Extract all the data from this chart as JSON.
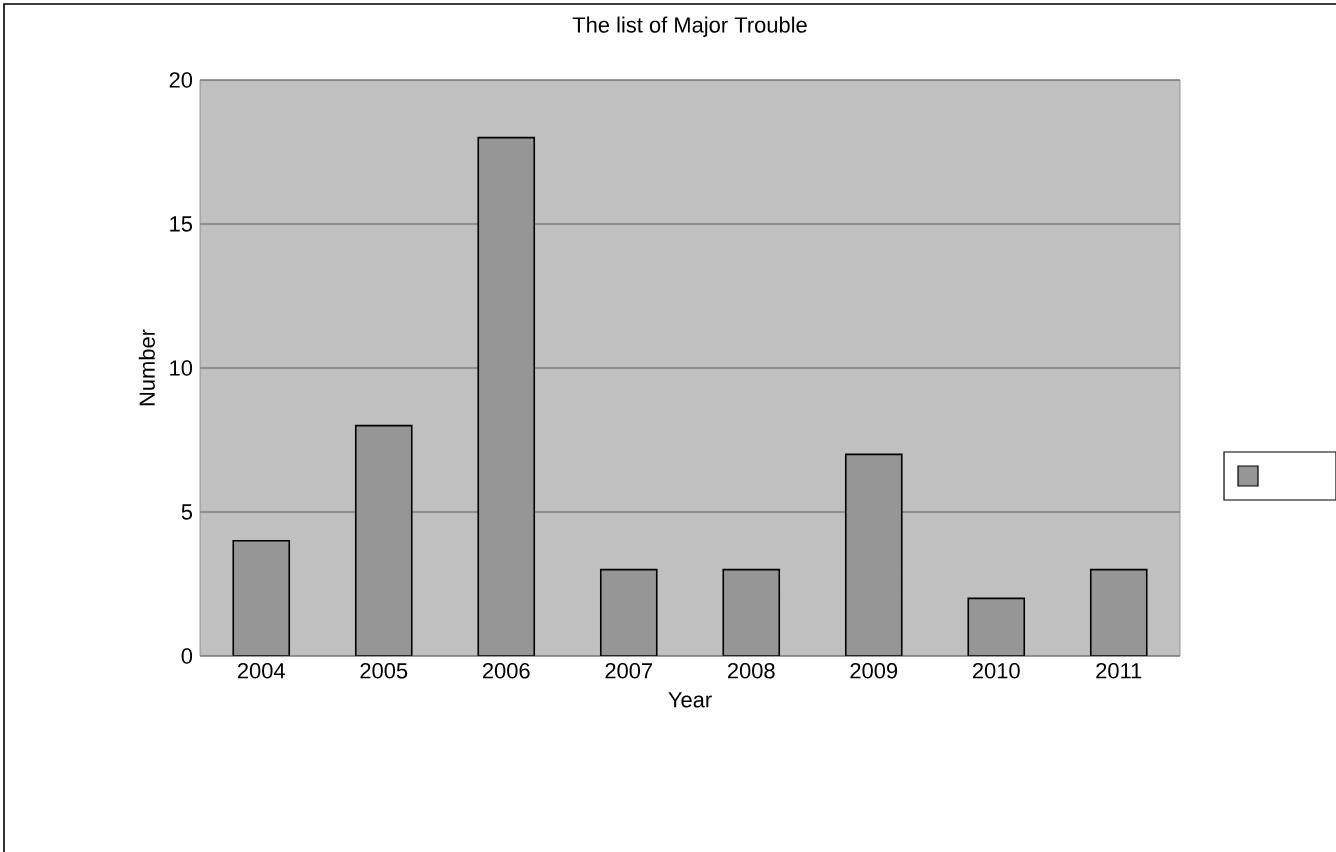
{
  "chart_data": {
    "type": "bar",
    "title": "The list of Major Trouble",
    "xlabel": "Year",
    "ylabel": "Number",
    "categories": [
      "2004",
      "2005",
      "2006",
      "2007",
      "2008",
      "2009",
      "2010",
      "2011"
    ],
    "values": [
      4,
      8,
      18,
      3,
      3,
      7,
      2,
      3
    ],
    "color": "#969696",
    "ylim": [
      0,
      20
    ],
    "yticks": [
      0,
      5,
      10,
      15,
      20
    ],
    "grid": "y"
  }
}
